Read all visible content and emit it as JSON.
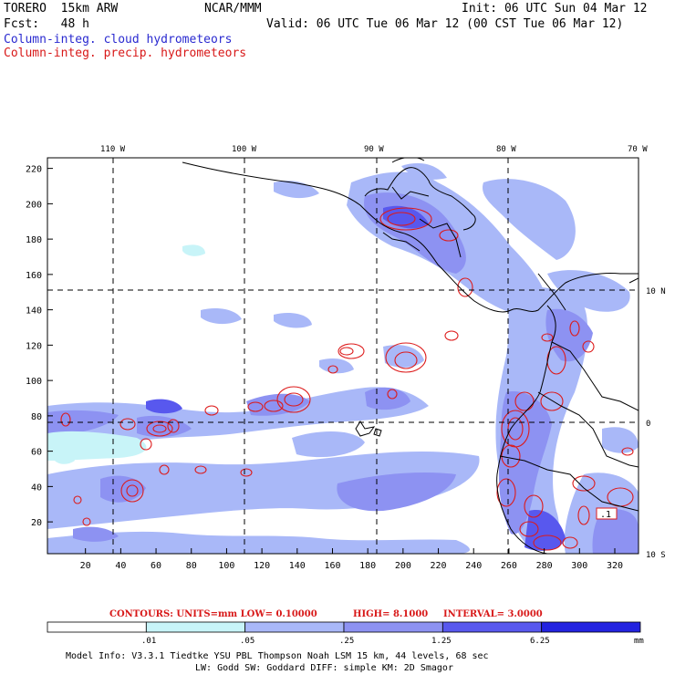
{
  "header": {
    "model": "TORERO  15km ARW",
    "org": "NCAR/MMM",
    "init": "Init: 06 UTC Sun 04 Mar 12",
    "fcst": "Fcst:   48 h",
    "valid": "Valid: 06 UTC Tue 06 Mar 12 (00 CST Tue 06 Mar 12)",
    "cloud_label": "Column-integ. cloud hydrometeors",
    "precip_label": "Column-integ. precip. hydrometeors"
  },
  "map": {
    "x_ticks": [
      "20",
      "40",
      "60",
      "80",
      "100",
      "120",
      "140",
      "160",
      "180",
      "200",
      "220",
      "240",
      "260",
      "280",
      "300",
      "320"
    ],
    "y_ticks": [
      "20",
      "40",
      "60",
      "80",
      "100",
      "120",
      "140",
      "160",
      "180",
      "200",
      "220"
    ],
    "lon_labels": [
      "110 W",
      "100 W",
      "90 W",
      "80 W",
      "70 W"
    ],
    "lat_labels": [
      "10 N",
      "0",
      "10 S"
    ],
    "contour_label": ".1"
  },
  "contours_text": {
    "units": "CONTOURS:  UNITS=mm  LOW= 0.10000",
    "high": "HIGH=  8.1000",
    "interval": "INTERVAL= 3.0000"
  },
  "colorbar": {
    "levels": [
      ".01",
      ".05",
      ".25",
      "1.25",
      "6.25"
    ],
    "unit": "mm",
    "colors": [
      "#ffffff",
      "#c8f4f8",
      "#a9b8f8",
      "#8d92f2",
      "#5858ee",
      "#2323e0"
    ]
  },
  "footer": {
    "line1": "Model Info: V3.3.1    Tiedtke YSU PBL  Thompson     Noah LSM  15 km,   44 levels,   68 sec",
    "line2": "LW: Godd SW: Goddard DIFF: simple KM: 2D Smagor"
  }
}
